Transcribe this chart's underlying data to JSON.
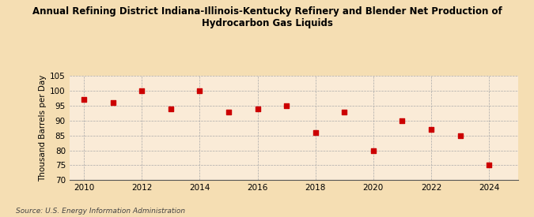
{
  "title_line1": "Annual Refining District Indiana-Illinois-Kentucky Refinery and Blender Net Production of",
  "title_line2": "Hydrocarbon Gas Liquids",
  "ylabel": "Thousand Barrels per Day",
  "source": "Source: U.S. Energy Information Administration",
  "background_color": "#f5deb3",
  "plot_bg_color": "#faebd7",
  "years": [
    2010,
    2011,
    2012,
    2013,
    2014,
    2015,
    2016,
    2017,
    2018,
    2019,
    2020,
    2021,
    2022,
    2023,
    2024
  ],
  "values": [
    97.0,
    96.0,
    100.0,
    94.0,
    100.0,
    93.0,
    94.0,
    95.0,
    86.0,
    93.0,
    80.0,
    90.0,
    87.0,
    85.0,
    75.0
  ],
  "marker_color": "#cc0000",
  "marker_size": 4,
  "ylim": [
    70,
    105
  ],
  "yticks": [
    70,
    75,
    80,
    85,
    90,
    95,
    100,
    105
  ],
  "xlim": [
    2009.5,
    2025.0
  ],
  "xticks": [
    2010,
    2012,
    2014,
    2016,
    2018,
    2020,
    2022,
    2024
  ],
  "grid_color": "#aaaaaa",
  "title_fontsize": 8.5,
  "label_fontsize": 7.5,
  "tick_fontsize": 7.5,
  "source_fontsize": 6.5
}
